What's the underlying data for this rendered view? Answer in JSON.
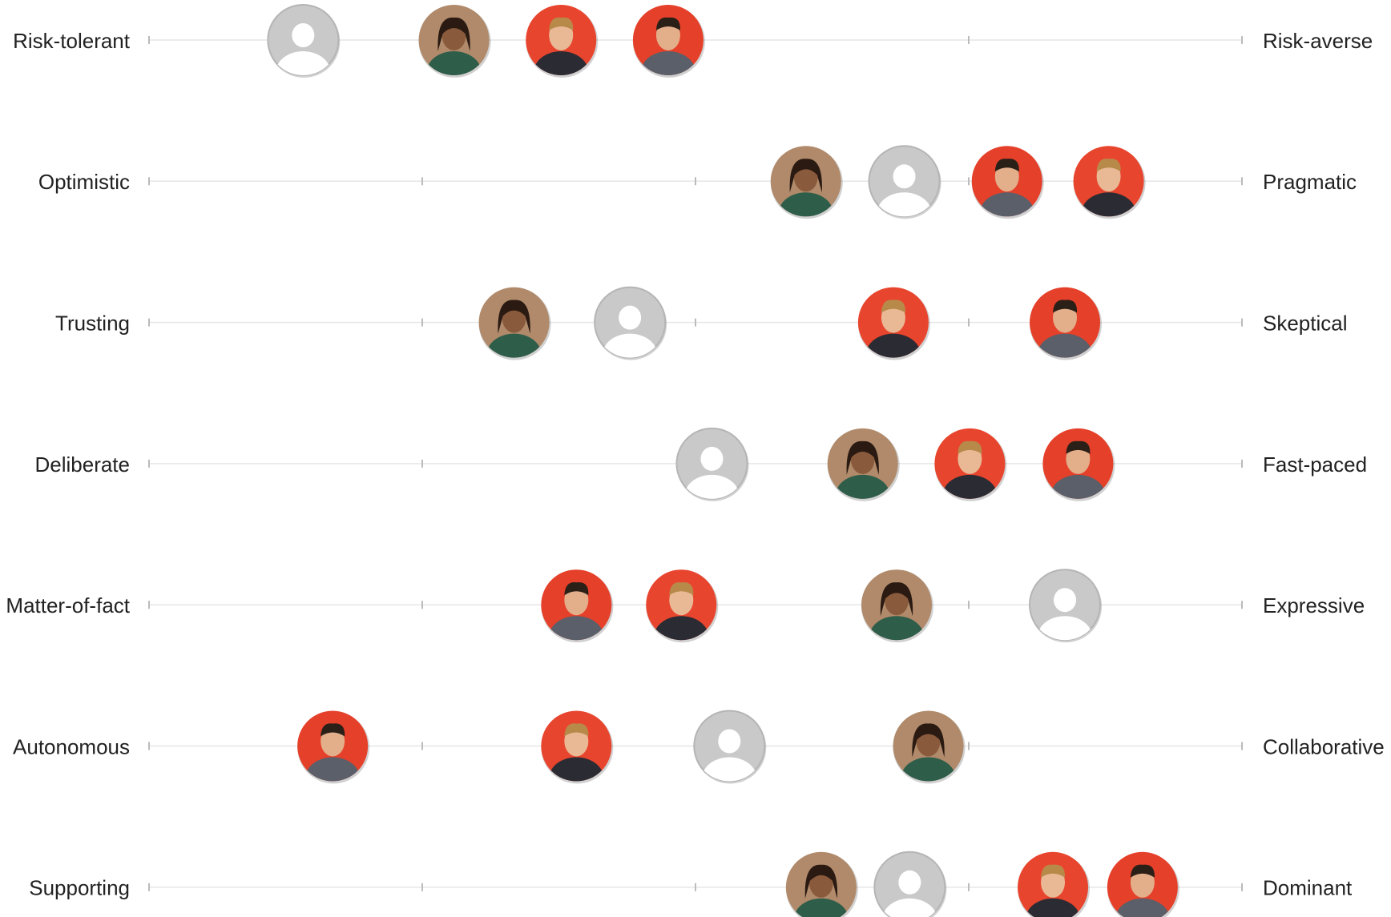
{
  "chart_data": {
    "type": "dot",
    "rows": [
      {
        "left": "Risk-tolerant",
        "right": "Risk-averse"
      },
      {
        "left": "Optimistic",
        "right": "Pragmatic"
      },
      {
        "left": "Trusting",
        "right": "Skeptical"
      },
      {
        "left": "Deliberate",
        "right": "Fast-paced"
      },
      {
        "left": "Matter-of-fact",
        "right": "Expressive"
      },
      {
        "left": "Autonomous",
        "right": "Collaborative"
      },
      {
        "left": "Supporting",
        "right": "Dominant"
      }
    ],
    "xlim": [
      0,
      100
    ],
    "xticks": [
      0,
      25,
      50,
      75,
      100
    ],
    "series": [
      {
        "color": "#b08a6a",
        "values": [
          27.9,
          60.1,
          33.4,
          65.3,
          68.4,
          71.3,
          61.5
        ]
      },
      {
        "color": "#e8452e",
        "values": [
          37.7,
          87.8,
          68.1,
          75.1,
          48.7,
          39.1,
          82.7
        ]
      },
      {
        "color": "#e5402a",
        "values": [
          47.5,
          78.5,
          83.8,
          85.0,
          39.1,
          16.8,
          90.9
        ]
      },
      {
        "color": "#c9c9c9",
        "values": [
          14.1,
          69.1,
          44.0,
          51.5,
          83.8,
          53.1,
          69.6
        ]
      }
    ]
  }
}
